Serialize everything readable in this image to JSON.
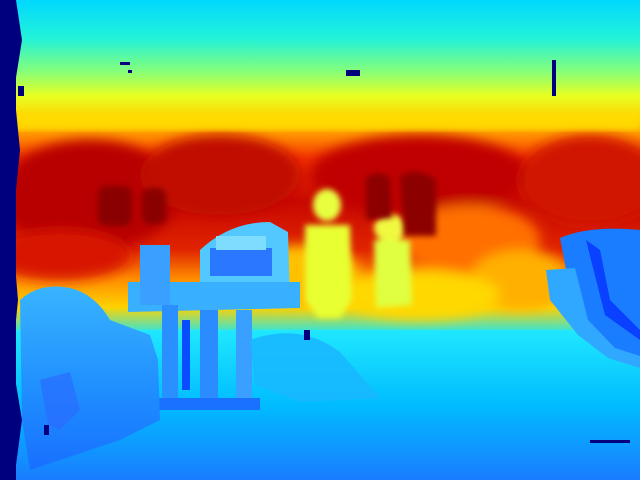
{
  "image": {
    "kind": "depth-map",
    "colormap": "jet",
    "palette": {
      "void": "#00007f",
      "deep_blue": "#0050ff",
      "blue": "#1f9bff",
      "cyan": "#00e5ff",
      "green_yellow": "#b8ff48",
      "yellow": "#ffe000",
      "orange": "#ff8a00",
      "red": "#e61a00",
      "dark_red": "#a40000"
    }
  }
}
